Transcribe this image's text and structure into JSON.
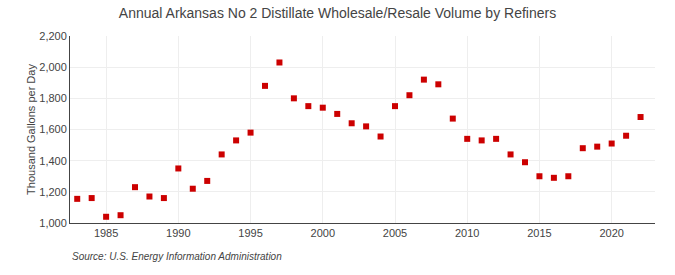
{
  "chart_data": {
    "type": "scatter",
    "title": "Annual Arkansas No 2 Distillate Wholesale/Resale Volume by Refiners",
    "ylabel": "Thousand Gallons per Day",
    "annotations": [
      "Source: U.S. Energy Information Administration"
    ],
    "x": [
      1983,
      1984,
      1985,
      1986,
      1987,
      1988,
      1989,
      1990,
      1991,
      1992,
      1993,
      1994,
      1995,
      1996,
      1997,
      1998,
      1999,
      2000,
      2001,
      2002,
      2003,
      2004,
      2005,
      2006,
      2007,
      2008,
      2009,
      2010,
      2011,
      2012,
      2013,
      2014,
      2015,
      2016,
      2017,
      2018,
      2019,
      2020,
      2021,
      2022
    ],
    "values": [
      1155,
      1160,
      1040,
      1050,
      1230,
      1170,
      1160,
      1350,
      1220,
      1270,
      1440,
      1530,
      1580,
      1880,
      2030,
      1800,
      1750,
      1740,
      1700,
      1640,
      1620,
      1555,
      1750,
      1820,
      1920,
      1890,
      1670,
      1540,
      1530,
      1540,
      1440,
      1390,
      1300,
      1290,
      1300,
      1480,
      1490,
      1510,
      1560,
      1680
    ],
    "color": "#cc0000",
    "marker": "square",
    "grid": true,
    "xlim": [
      1982.5,
      2023
    ],
    "xticks": [
      1985,
      1990,
      1995,
      2000,
      2005,
      2010,
      2015,
      2020
    ],
    "ylim": [
      1000,
      2200
    ],
    "yticks": [
      {
        "value": 1000,
        "label": "1,000"
      },
      {
        "value": 1200,
        "label": "1,200"
      },
      {
        "value": 1400,
        "label": "1,400"
      },
      {
        "value": 1600,
        "label": "1,600"
      },
      {
        "value": 1800,
        "label": "1,800"
      },
      {
        "value": 2000,
        "label": "2,000"
      },
      {
        "value": 2200,
        "label": "2,200"
      }
    ]
  }
}
